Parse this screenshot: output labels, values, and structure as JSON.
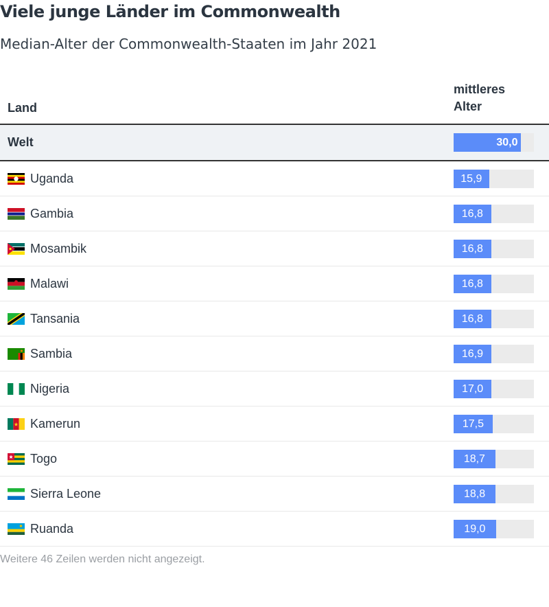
{
  "title": "Viele junge Länder im Commonwealth",
  "subtitle": "Median-Alter der Commonwealth-Staaten im Jahr 2021",
  "columns": {
    "land": "Land",
    "value_line1": "mittleres",
    "value_line2": "Alter"
  },
  "chart_data": {
    "type": "table",
    "title": "Viele junge Länder im Commonwealth",
    "subtitle": "Median-Alter der Commonwealth-Staaten im Jahr 2021",
    "value_column": "mittleres Alter",
    "bar_max": 36,
    "highlight": {
      "country": "Welt",
      "value": 30.0,
      "label": "30,0"
    },
    "rows": [
      {
        "country": "Uganda",
        "flag": "uganda-flag-icon",
        "value": 15.9,
        "label": "15,9"
      },
      {
        "country": "Gambia",
        "flag": "gambia-flag-icon",
        "value": 16.8,
        "label": "16,8"
      },
      {
        "country": "Mosambik",
        "flag": "mozambique-flag-icon",
        "value": 16.8,
        "label": "16,8"
      },
      {
        "country": "Malawi",
        "flag": "malawi-flag-icon",
        "value": 16.8,
        "label": "16,8"
      },
      {
        "country": "Tansania",
        "flag": "tanzania-flag-icon",
        "value": 16.8,
        "label": "16,8"
      },
      {
        "country": "Sambia",
        "flag": "zambia-flag-icon",
        "value": 16.9,
        "label": "16,9"
      },
      {
        "country": "Nigeria",
        "flag": "nigeria-flag-icon",
        "value": 17.0,
        "label": "17,0"
      },
      {
        "country": "Kamerun",
        "flag": "cameroon-flag-icon",
        "value": 17.5,
        "label": "17,5"
      },
      {
        "country": "Togo",
        "flag": "togo-flag-icon",
        "value": 18.7,
        "label": "18,7"
      },
      {
        "country": "Sierra Leone",
        "flag": "sierra-leone-flag-icon",
        "value": 18.8,
        "label": "18,8"
      },
      {
        "country": "Ruanda",
        "flag": "rwanda-flag-icon",
        "value": 19.0,
        "label": "19,0"
      }
    ]
  },
  "colors": {
    "bar": "#5b8cf9",
    "track": "#ebebeb",
    "highlight_bg": "#eff2f5"
  },
  "footer": "Weitere 46 Zeilen werden nicht angezeigt."
}
